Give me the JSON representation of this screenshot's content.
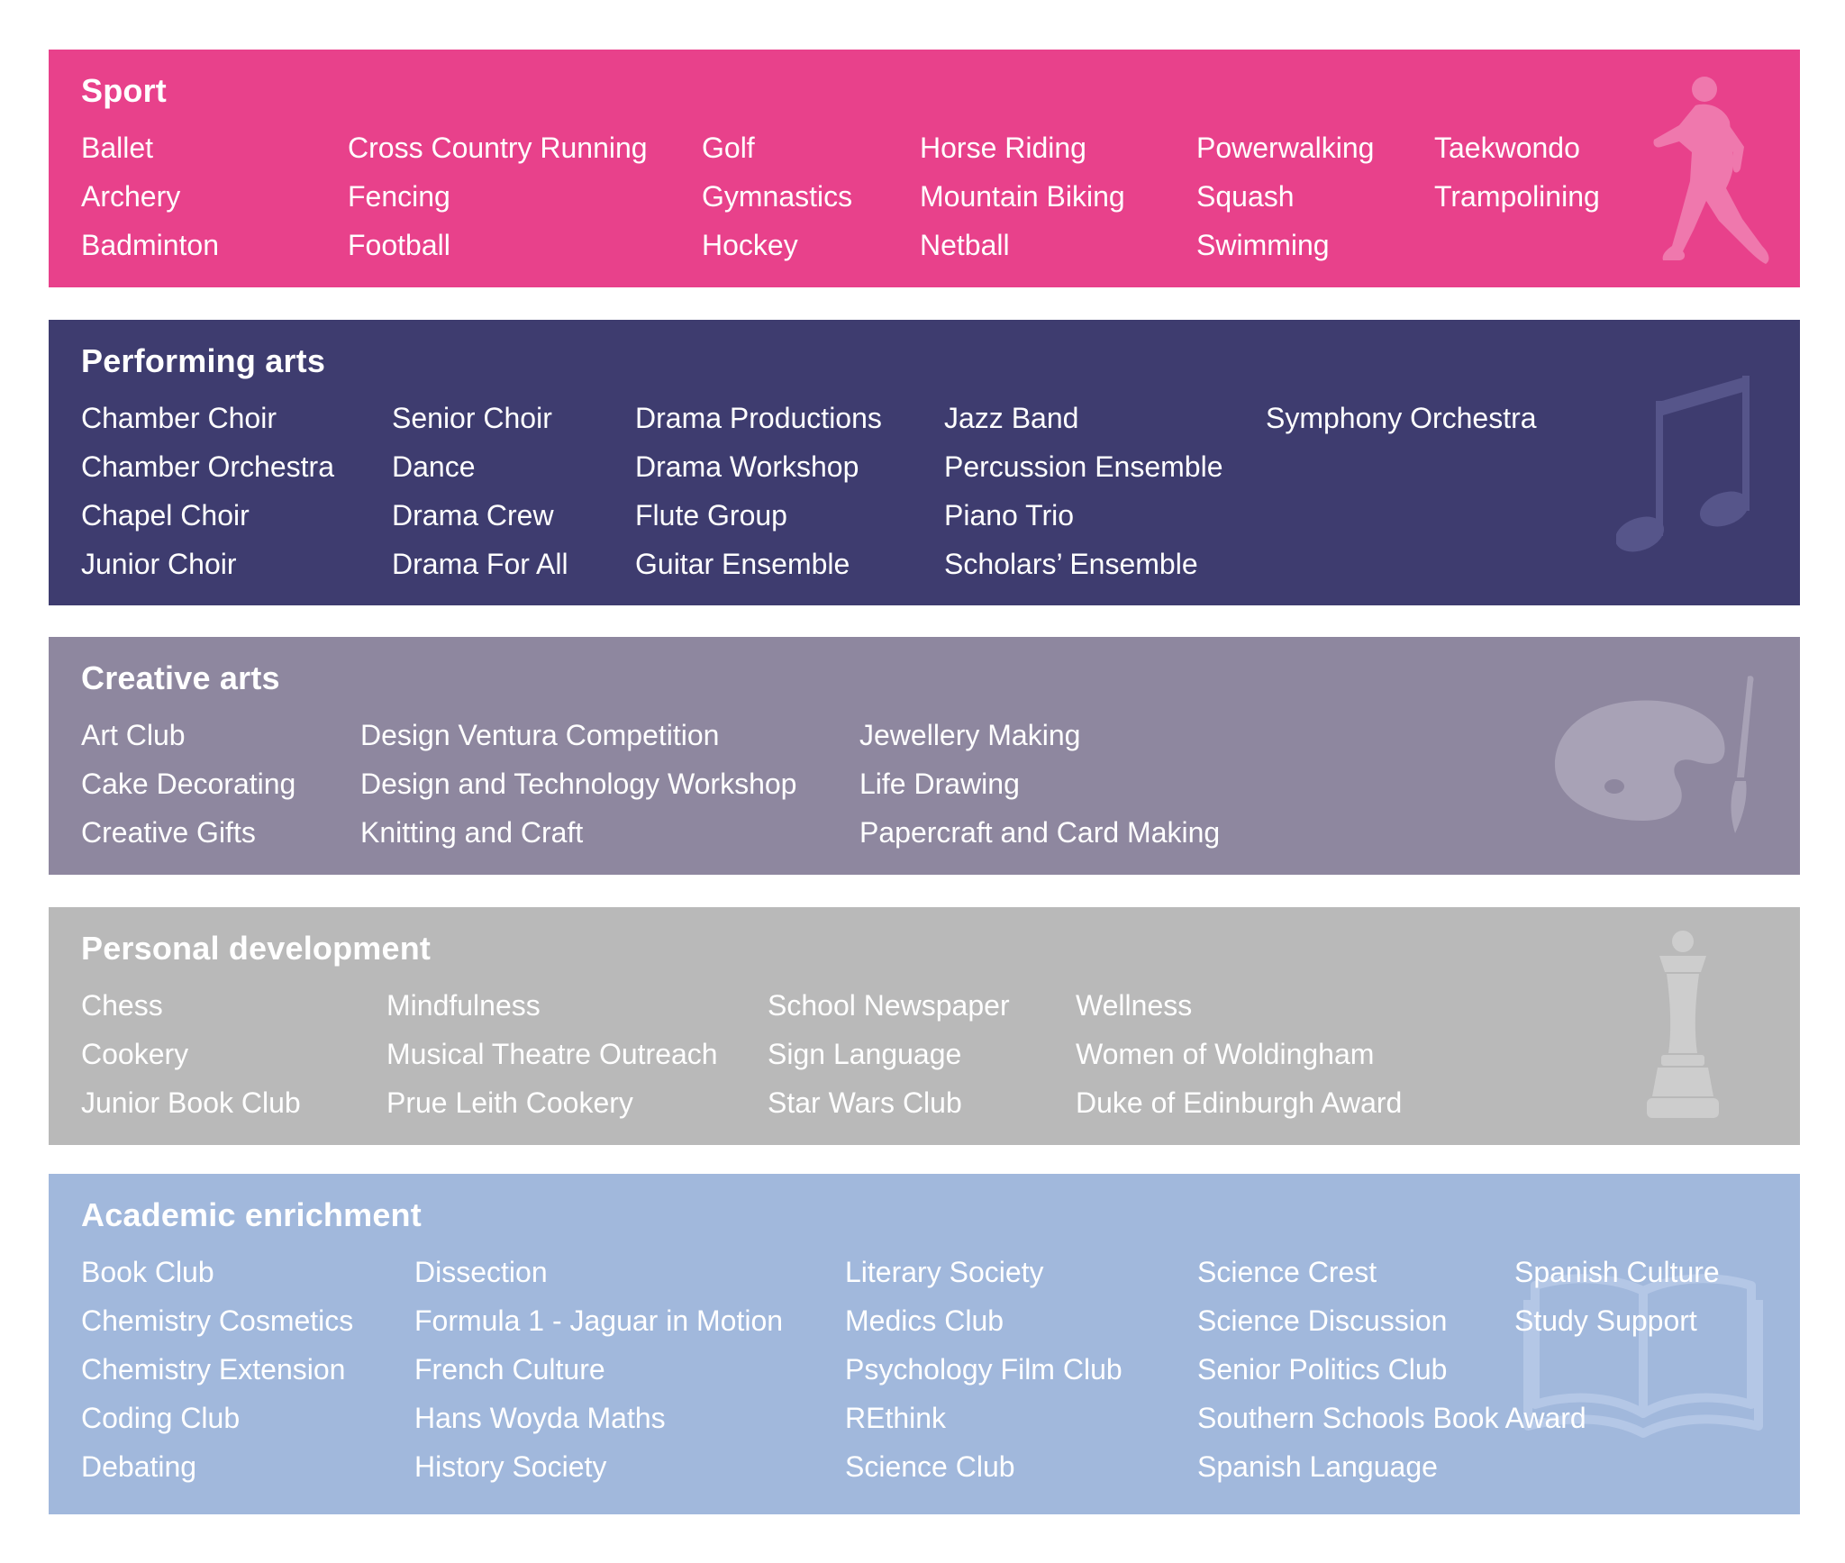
{
  "colors": {
    "sport": "#e8418b",
    "performing": "#3e3c6f",
    "creative": "#8e879f",
    "personal": "#b9b9b9",
    "academic": "#a1b8dc",
    "text": "#ffffff"
  },
  "sport": {
    "title": "Sport",
    "icon": "runner-icon",
    "columns": [
      [
        "Ballet",
        "Archery",
        "Badminton"
      ],
      [
        "Cross Country Running",
        "Fencing",
        "Football"
      ],
      [
        "Golf",
        "Gymnastics",
        "Hockey"
      ],
      [
        "Horse Riding",
        "Mountain Biking",
        "Netball"
      ],
      [
        "Powerwalking",
        "Squash",
        "Swimming"
      ],
      [
        "Taekwondo",
        "Trampolining"
      ]
    ]
  },
  "performing": {
    "title": "Performing arts",
    "icon": "music-note-icon",
    "columns": [
      [
        "Chamber Choir",
        "Chamber Orchestra",
        "Chapel Choir",
        "Junior Choir"
      ],
      [
        "Senior Choir",
        "Dance",
        "Drama Crew",
        "Drama For All"
      ],
      [
        "Drama Productions",
        "Drama Workshop",
        "Flute Group",
        "Guitar Ensemble"
      ],
      [
        "Jazz Band",
        "Percussion Ensemble",
        "Piano Trio",
        "Scholars’ Ensemble"
      ],
      [
        "Symphony Orchestra"
      ]
    ]
  },
  "creative": {
    "title": "Creative arts",
    "icon": "palette-icon",
    "columns": [
      [
        "Art Club",
        "Cake Decorating",
        "Creative Gifts"
      ],
      [
        "Design Ventura Competition",
        "Design and Technology Workshop",
        "Knitting and Craft"
      ],
      [
        "Jewellery Making",
        "Life Drawing",
        "Papercraft and Card Making"
      ]
    ]
  },
  "personal": {
    "title": "Personal development",
    "icon": "chess-queen-icon",
    "columns": [
      [
        "Chess",
        "Cookery",
        "Junior Book Club"
      ],
      [
        "Mindfulness",
        "Musical Theatre Outreach",
        "Prue Leith Cookery"
      ],
      [
        "School Newspaper",
        "Sign Language",
        "Star Wars Club"
      ],
      [
        "Wellness",
        "Women of Woldingham",
        "Duke of Edinburgh Award"
      ]
    ]
  },
  "academic": {
    "title": "Academic enrichment",
    "icon": "open-book-icon",
    "columns": [
      [
        "Book Club",
        "Chemistry Cosmetics",
        "Chemistry Extension",
        "Coding Club",
        "Debating"
      ],
      [
        "Dissection",
        "Formula 1 - Jaguar in Motion",
        "French Culture",
        "Hans Woyda Maths",
        "History Society"
      ],
      [
        "Literary Society",
        "Medics Club",
        "Psychology Film Club",
        "REthink",
        "Science Club"
      ],
      [
        "Science Crest",
        "Science Discussion",
        "Senior Politics Club",
        "Southern Schools Book Award",
        "Spanish Language"
      ],
      [
        "Spanish Culture",
        "Study Support"
      ]
    ]
  }
}
